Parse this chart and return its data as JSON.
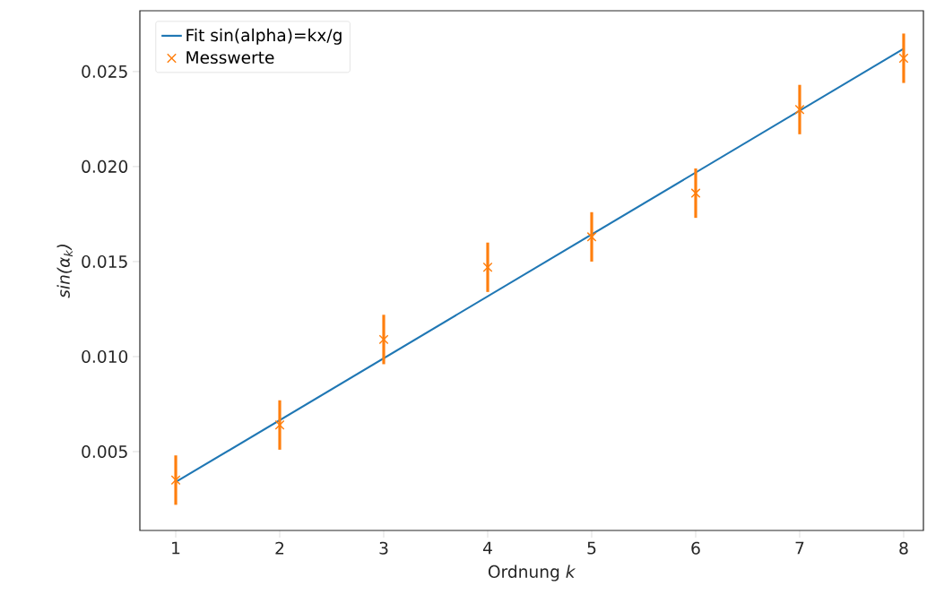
{
  "chart_data": {
    "type": "scatter",
    "xlabel": "Ordnung *k*",
    "ylabel": "sin(α$_{k}$)",
    "xlim": [
      0.655,
      8.19
    ],
    "ylim": [
      0.00085,
      0.0282
    ],
    "xticks": [
      1,
      2,
      3,
      4,
      5,
      6,
      7,
      8
    ],
    "yticks": [
      {
        "value": 0.005,
        "label": "0.005"
      },
      {
        "value": 0.01,
        "label": "0.010"
      },
      {
        "value": 0.015,
        "label": "0.015"
      },
      {
        "value": 0.02,
        "label": "0.020"
      },
      {
        "value": 0.025,
        "label": "0.025"
      }
    ],
    "grid": false,
    "legend": "top left",
    "series": [
      {
        "name": "Fit sin(alpha)=kx/g",
        "type": "line",
        "color": "#1f77b4",
        "marker": "none",
        "x": [
          1,
          8
        ],
        "values": [
          0.0034,
          0.0262
        ]
      },
      {
        "name": "Messwerte",
        "color": "#ff7f0e",
        "marker": "cross",
        "x": [
          1,
          2,
          3,
          4,
          5,
          6,
          7,
          8
        ],
        "values": [
          0.0035,
          0.0064,
          0.0109,
          0.0147,
          0.0163,
          0.0186,
          0.023,
          0.0257
        ],
        "errors": [
          0.0013,
          0.0013,
          0.0013,
          0.0013,
          0.0013,
          0.0013,
          0.0013,
          0.0013
        ]
      }
    ]
  }
}
